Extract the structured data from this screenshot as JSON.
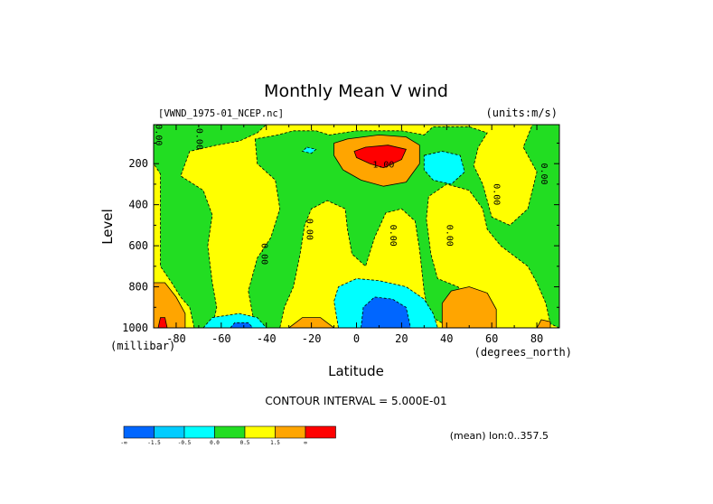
{
  "chart_data": {
    "type": "heatmap",
    "title": "Monthly Mean V wind",
    "dataset": "[VWND_1975-01_NCEP.nc]",
    "units": "(units:m/s)",
    "xlabel": "Latitude",
    "x_units": "(degrees_north)",
    "ylabel": "Level",
    "y_units": "(millibar)",
    "xlim": [
      -90,
      90
    ],
    "ylim": [
      1000,
      10
    ],
    "x_ticks": [
      -80,
      -60,
      -40,
      -20,
      0,
      20,
      40,
      60,
      80
    ],
    "x_tick_labels": [
      "-80",
      "-60",
      "-40",
      "-20",
      "0",
      "20",
      "40",
      "60",
      "80"
    ],
    "y_ticks": [
      200,
      400,
      600,
      800,
      1000
    ],
    "y_tick_labels": [
      "200",
      "400",
      "600",
      "800",
      "1000"
    ],
    "contour_interval_text": "CONTOUR INTERVAL = 5.000E-01",
    "footer": "(mean) lon:0..357.5",
    "contour_labels": [
      {
        "text": "1.00",
        "lat": 12,
        "level": 220
      },
      {
        "text": "0.00",
        "lat": -89,
        "level": 60
      },
      {
        "text": "0.00",
        "lat": -71,
        "level": 80
      },
      {
        "text": "0.00",
        "lat": -42,
        "level": 640
      },
      {
        "text": "0.00",
        "lat": -22,
        "level": 520
      },
      {
        "text": "0.00",
        "lat": 15,
        "level": 550
      },
      {
        "text": "0.00",
        "lat": 40,
        "level": 550
      },
      {
        "text": "0.00",
        "lat": 61,
        "level": 350
      },
      {
        "text": "0.00",
        "lat": 82,
        "level": 250
      }
    ],
    "legend": {
      "colors": [
        "#0066ff",
        "#00ccff",
        "#00ffff",
        "#22dd22",
        "#ffff00",
        "#ffa500",
        "#ff0000"
      ],
      "tick_labels": [
        "-∞",
        "-1.5",
        "-0.5",
        "0.0",
        "0.5",
        "1.5",
        "∞"
      ]
    },
    "field": {
      "background_color": "#ffff00",
      "regions": [
        {
          "value": -0.25,
          "color": "#22dd22",
          "points": [
            [
              -90,
              10
            ],
            [
              -90,
              200
            ],
            [
              -87,
              250
            ],
            [
              -87,
              700
            ],
            [
              -82,
              780
            ],
            [
              -78,
              850
            ],
            [
              -74,
              900
            ],
            [
              -72,
              1000
            ],
            [
              -64,
              1000
            ],
            [
              -62,
              900
            ],
            [
              -64,
              780
            ],
            [
              -66,
              600
            ],
            [
              -64,
              450
            ],
            [
              -68,
              330
            ],
            [
              -78,
              260
            ],
            [
              -74,
              140
            ],
            [
              -62,
              110
            ],
            [
              -52,
              90
            ],
            [
              -44,
              50
            ],
            [
              -40,
              10
            ]
          ]
        },
        {
          "value": -0.25,
          "color": "#22dd22",
          "points": [
            [
              -45,
              80
            ],
            [
              -44,
              200
            ],
            [
              -36,
              280
            ],
            [
              -34,
              420
            ],
            [
              -38,
              560
            ],
            [
              -44,
              660
            ],
            [
              -48,
              820
            ],
            [
              -46,
              940
            ],
            [
              -42,
              1000
            ],
            [
              -34,
              1000
            ],
            [
              -32,
              900
            ],
            [
              -28,
              800
            ],
            [
              -25,
              640
            ],
            [
              -23,
              500
            ],
            [
              -20,
              420
            ],
            [
              -13,
              380
            ],
            [
              -5,
              420
            ],
            [
              -4,
              520
            ],
            [
              -2,
              640
            ],
            [
              4,
              700
            ],
            [
              8,
              560
            ],
            [
              13,
              440
            ],
            [
              20,
              420
            ],
            [
              26,
              480
            ],
            [
              28,
              620
            ],
            [
              30,
              820
            ],
            [
              32,
              940
            ],
            [
              42,
              1000
            ],
            [
              52,
              1000
            ],
            [
              52,
              890
            ],
            [
              45,
              800
            ],
            [
              36,
              760
            ],
            [
              33,
              640
            ],
            [
              31,
              470
            ],
            [
              32,
              360
            ],
            [
              40,
              300
            ],
            [
              50,
              330
            ],
            [
              56,
              420
            ],
            [
              58,
              520
            ],
            [
              64,
              600
            ],
            [
              70,
              650
            ],
            [
              76,
              700
            ],
            [
              80,
              780
            ],
            [
              84,
              880
            ],
            [
              86,
              980
            ],
            [
              90,
              1000
            ],
            [
              90,
              10
            ],
            [
              78,
              10
            ],
            [
              74,
              120
            ],
            [
              80,
              240
            ],
            [
              76,
              420
            ],
            [
              68,
              500
            ],
            [
              60,
              460
            ],
            [
              56,
              300
            ],
            [
              52,
              210
            ],
            [
              54,
              120
            ],
            [
              58,
              50
            ],
            [
              50,
              20
            ],
            [
              34,
              20
            ],
            [
              30,
              60
            ],
            [
              20,
              40
            ],
            [
              0,
              40
            ],
            [
              -12,
              60
            ],
            [
              -18,
              40
            ],
            [
              -28,
              40
            ],
            [
              -35,
              60
            ]
          ]
        },
        {
          "value": -0.75,
          "color": "#00ffff",
          "points": [
            [
              -8,
              1000
            ],
            [
              -10,
              870
            ],
            [
              -8,
              800
            ],
            [
              0,
              760
            ],
            [
              10,
              770
            ],
            [
              22,
              800
            ],
            [
              30,
              860
            ],
            [
              34,
              930
            ],
            [
              36,
              1000
            ]
          ]
        },
        {
          "value": -0.75,
          "color": "#00ffff",
          "points": [
            [
              30,
              160
            ],
            [
              38,
              140
            ],
            [
              46,
              160
            ],
            [
              48,
              240
            ],
            [
              42,
              300
            ],
            [
              34,
              280
            ],
            [
              30,
              230
            ]
          ]
        },
        {
          "value": -0.75,
          "color": "#00ffff",
          "points": [
            [
              -68,
              1000
            ],
            [
              -64,
              950
            ],
            [
              -52,
              930
            ],
            [
              -44,
              950
            ],
            [
              -40,
              1000
            ]
          ]
        },
        {
          "value": -0.75,
          "color": "#00ffff",
          "points": [
            [
              -22,
              120
            ],
            [
              -18,
              130
            ],
            [
              -20,
              150
            ],
            [
              -24,
              140
            ]
          ]
        },
        {
          "value": -1.75,
          "color": "#0066ff",
          "points": [
            [
              2,
              1000
            ],
            [
              3,
              900
            ],
            [
              8,
              850
            ],
            [
              16,
              860
            ],
            [
              22,
              900
            ],
            [
              24,
              1000
            ]
          ]
        },
        {
          "value": -1.75,
          "color": "#0066ff",
          "points": [
            [
              -56,
              1000
            ],
            [
              -54,
              975
            ],
            [
              -48,
              975
            ],
            [
              -46,
              1000
            ]
          ]
        },
        {
          "value": 0.75,
          "color": "#ffa500",
          "points": [
            [
              -90,
              780
            ],
            [
              -85,
              780
            ],
            [
              -80,
              850
            ],
            [
              -76,
              930
            ],
            [
              -76,
              1000
            ],
            [
              -90,
              1000
            ]
          ]
        },
        {
          "value": 0.75,
          "color": "#ffa500",
          "points": [
            [
              38,
              880
            ],
            [
              42,
              820
            ],
            [
              50,
              800
            ],
            [
              58,
              830
            ],
            [
              62,
              910
            ],
            [
              62,
              1000
            ],
            [
              38,
              1000
            ]
          ]
        },
        {
          "value": 0.75,
          "color": "#ffa500",
          "points": [
            [
              -30,
              1000
            ],
            [
              -24,
              950
            ],
            [
              -16,
              950
            ],
            [
              -10,
              1000
            ]
          ]
        },
        {
          "value": 0.75,
          "color": "#ffa500",
          "points": [
            [
              80,
              1000
            ],
            [
              82,
              960
            ],
            [
              86,
              970
            ],
            [
              86,
              1000
            ]
          ]
        },
        {
          "value": 0.75,
          "color": "#ffa500",
          "points": [
            [
              -10,
              100
            ],
            [
              -4,
              80
            ],
            [
              10,
              60
            ],
            [
              22,
              70
            ],
            [
              28,
              110
            ],
            [
              28,
              200
            ],
            [
              22,
              290
            ],
            [
              12,
              310
            ],
            [
              2,
              280
            ],
            [
              -6,
              230
            ],
            [
              -10,
              160
            ]
          ]
        },
        {
          "value": 1.75,
          "color": "#ff0000",
          "points": [
            [
              -1,
              140
            ],
            [
              4,
              120
            ],
            [
              14,
              110
            ],
            [
              22,
              130
            ],
            [
              20,
              180
            ],
            [
              12,
              220
            ],
            [
              6,
              200
            ],
            [
              0,
              170
            ]
          ]
        },
        {
          "value": 1.75,
          "color": "#ff0000",
          "points": [
            [
              -87,
              950
            ],
            [
              -85,
              950
            ],
            [
              -84,
              1000
            ],
            [
              -88,
              1000
            ]
          ]
        }
      ]
    }
  }
}
